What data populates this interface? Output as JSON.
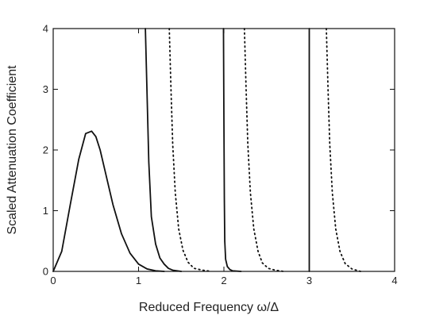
{
  "chart_data": {
    "type": "line",
    "title": "",
    "xlabel": "Reduced Frequency   ω/Δ",
    "ylabel": "Scaled Attenuation Coefficient",
    "xlim": [
      0,
      4
    ],
    "ylim": [
      0,
      4
    ],
    "xticks": [
      0,
      1,
      2,
      3,
      4
    ],
    "yticks": [
      0,
      1,
      2,
      3,
      4
    ],
    "grid": false,
    "legend": "none",
    "series": [
      {
        "style": "solid",
        "x": [
          0,
          0.1,
          0.2,
          0.3,
          0.38,
          0.45,
          0.5,
          0.55,
          0.6,
          0.7,
          0.8,
          0.9,
          1.0,
          1.1,
          1.2,
          1.3
        ],
        "y": [
          0,
          0.33,
          1.1,
          1.85,
          2.27,
          2.31,
          2.22,
          2.0,
          1.7,
          1.1,
          0.62,
          0.3,
          0.12,
          0.04,
          0.01,
          0
        ]
      },
      {
        "style": "solid",
        "x": [
          1.08,
          1.1,
          1.12,
          1.15,
          1.2,
          1.25,
          1.3,
          1.35,
          1.4,
          1.5
        ],
        "y": [
          4,
          2.9,
          1.8,
          0.9,
          0.45,
          0.22,
          0.12,
          0.05,
          0.02,
          0
        ]
      },
      {
        "style": "dotted",
        "x": [
          1.36,
          1.38,
          1.4,
          1.43,
          1.47,
          1.52,
          1.58,
          1.65,
          1.75,
          1.85
        ],
        "y": [
          4,
          3.0,
          2.1,
          1.3,
          0.7,
          0.35,
          0.15,
          0.05,
          0.02,
          0
        ]
      },
      {
        "style": "solid",
        "x": [
          1.995,
          2.0,
          2.005,
          2.01,
          2.02,
          2.04,
          2.07,
          2.1,
          2.2
        ],
        "y": [
          4,
          2.5,
          1.2,
          0.5,
          0.2,
          0.08,
          0.03,
          0.01,
          0
        ]
      },
      {
        "style": "dotted",
        "x": [
          2.24,
          2.26,
          2.28,
          2.31,
          2.35,
          2.4,
          2.45,
          2.52,
          2.6,
          2.7
        ],
        "y": [
          4,
          3.0,
          2.1,
          1.3,
          0.7,
          0.33,
          0.14,
          0.05,
          0.02,
          0
        ]
      },
      {
        "style": "solid",
        "x": [
          3.0,
          3.0
        ],
        "y": [
          4,
          0
        ]
      },
      {
        "style": "dotted",
        "x": [
          3.2,
          3.22,
          3.24,
          3.27,
          3.31,
          3.36,
          3.42,
          3.5,
          3.6
        ],
        "y": [
          4,
          3.0,
          2.1,
          1.3,
          0.7,
          0.33,
          0.13,
          0.04,
          0
        ]
      }
    ]
  }
}
